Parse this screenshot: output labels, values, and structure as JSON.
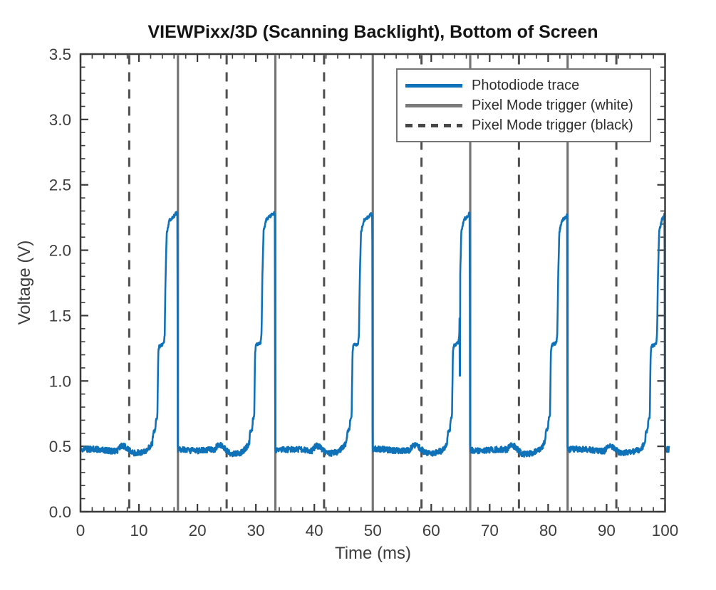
{
  "chart_data": {
    "type": "line",
    "title": "VIEWPixx/3D (Scanning Backlight), Bottom of Screen",
    "xlabel": "Time (ms)",
    "ylabel": "Voltage (V)",
    "xlim": [
      0,
      100
    ],
    "ylim": [
      0.0,
      3.5
    ],
    "x_major_ticks": [
      0,
      10,
      20,
      30,
      40,
      50,
      60,
      70,
      80,
      90,
      100
    ],
    "x_tick_labels": [
      "0",
      "10",
      "20",
      "30",
      "40",
      "50",
      "60",
      "70",
      "80",
      "90",
      "100"
    ],
    "x_minor_step": 2,
    "y_major_ticks": [
      0.0,
      0.5,
      1.0,
      1.5,
      2.0,
      2.5,
      3.0,
      3.5
    ],
    "y_tick_labels": [
      "0.0",
      "0.5",
      "1.0",
      "1.5",
      "2.0",
      "2.5",
      "3.0",
      "3.5"
    ],
    "y_minor_step": 0.1,
    "grid": false,
    "legend_position": "upper right",
    "legend": {
      "items": [
        {
          "label": "Photodiode trace",
          "color": "#0f72b8",
          "style": "solid"
        },
        {
          "label": "Pixel Mode trigger (white)",
          "color": "#7a7a7a",
          "style": "solid"
        },
        {
          "label": "Pixel Mode trigger (black)",
          "color": "#474747",
          "style": "dashed"
        }
      ]
    },
    "axis_color": "#3a3a3a",
    "series": [
      {
        "name": "Photodiode trace",
        "type": "photodiode_trace",
        "color": "#0f72b8",
        "baseline_v": 0.475,
        "mid_plateau_v": 1.28,
        "peak_v": 2.29,
        "period_ms": 16.6667,
        "num_periods": 6,
        "noise_v": 0.022,
        "rise_delay_ms": [
          0.0,
          -0.1,
          -0.1,
          0.4,
          0.5,
          0.9
        ],
        "pulse_profile_ms_v": [
          [
            0,
            0.475
          ],
          [
            6.3,
            0.47
          ],
          [
            6.9,
            0.51
          ],
          [
            7.6,
            0.5
          ],
          [
            8.3,
            0.47
          ],
          [
            9.0,
            0.445
          ],
          [
            10.5,
            0.45
          ],
          [
            11.3,
            0.47
          ],
          [
            11.9,
            0.5
          ],
          [
            12.3,
            0.53
          ],
          [
            12.45,
            0.61
          ],
          [
            12.8,
            0.63
          ],
          [
            12.9,
            0.7
          ],
          [
            13.15,
            0.73
          ],
          [
            13.3,
            1.22
          ],
          [
            13.45,
            1.27
          ],
          [
            14.25,
            1.29
          ],
          [
            14.4,
            1.36
          ],
          [
            14.55,
            1.8
          ],
          [
            14.75,
            2.14
          ],
          [
            15.2,
            2.23
          ],
          [
            16.0,
            2.26
          ],
          [
            16.45,
            2.285
          ],
          [
            16.58,
            2.275
          ],
          [
            16.63,
            0.52
          ],
          [
            16.667,
            0.475
          ]
        ],
        "glitch": {
          "pulse_index": 3,
          "dt_ms": 14.45,
          "v_drop_to": 1.04
        }
      },
      {
        "name": "Pixel Mode trigger (white)",
        "type": "vlines",
        "style": "solid",
        "color": "#757575",
        "x_values": [
          16.667,
          33.333,
          50.0,
          66.667,
          83.333
        ]
      },
      {
        "name": "Pixel Mode trigger (black)",
        "type": "vlines",
        "style": "dashed",
        "color": "#4f4f4f",
        "x_values": [
          8.333,
          25.0,
          41.667,
          58.333,
          75.0,
          91.667
        ]
      }
    ]
  }
}
